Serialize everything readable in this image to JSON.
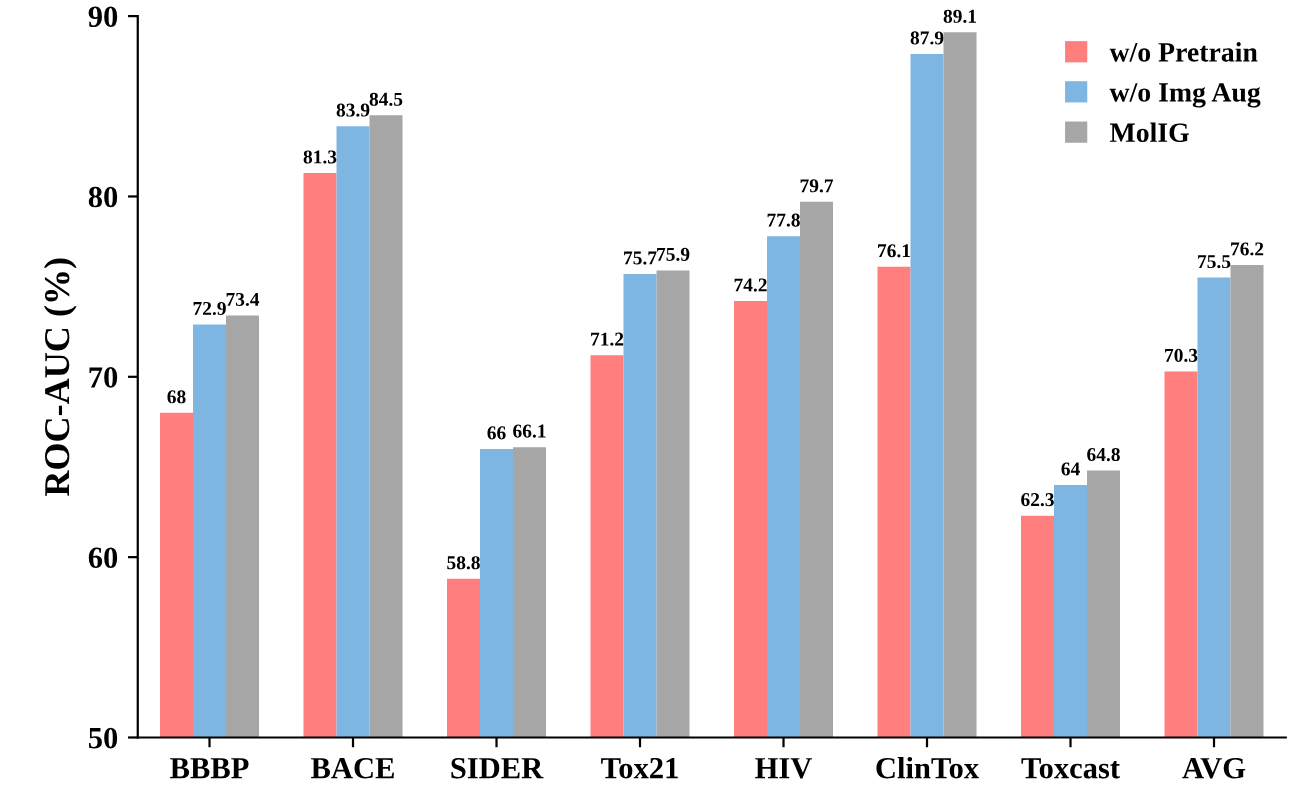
{
  "chart_data": {
    "type": "bar",
    "ylabel": "ROC-AUC (%)",
    "categories": [
      "BBBP",
      "BACE",
      "SIDER",
      "Tox21",
      "HIV",
      "ClinTox",
      "Toxcast",
      "AVG"
    ],
    "series": [
      {
        "name": "w/o Pretrain",
        "color": "#ff7f7f",
        "values": [
          68,
          81.3,
          58.8,
          71.2,
          74.2,
          76.1,
          62.3,
          70.3
        ]
      },
      {
        "name": "w/o Img Aug",
        "color": "#7fb5e1",
        "values": [
          72.9,
          83.9,
          66,
          75.7,
          77.8,
          87.9,
          64,
          75.5
        ]
      },
      {
        "name": "MolIG",
        "color": "#a6a6a6",
        "values": [
          73.4,
          84.5,
          66.1,
          75.9,
          79.7,
          89.1,
          64.8,
          76.2
        ]
      }
    ],
    "ylim": [
      50,
      90
    ],
    "yticks": [
      50,
      60,
      70,
      80,
      90
    ],
    "data_labels": true,
    "legend": "top right",
    "grid": false
  }
}
